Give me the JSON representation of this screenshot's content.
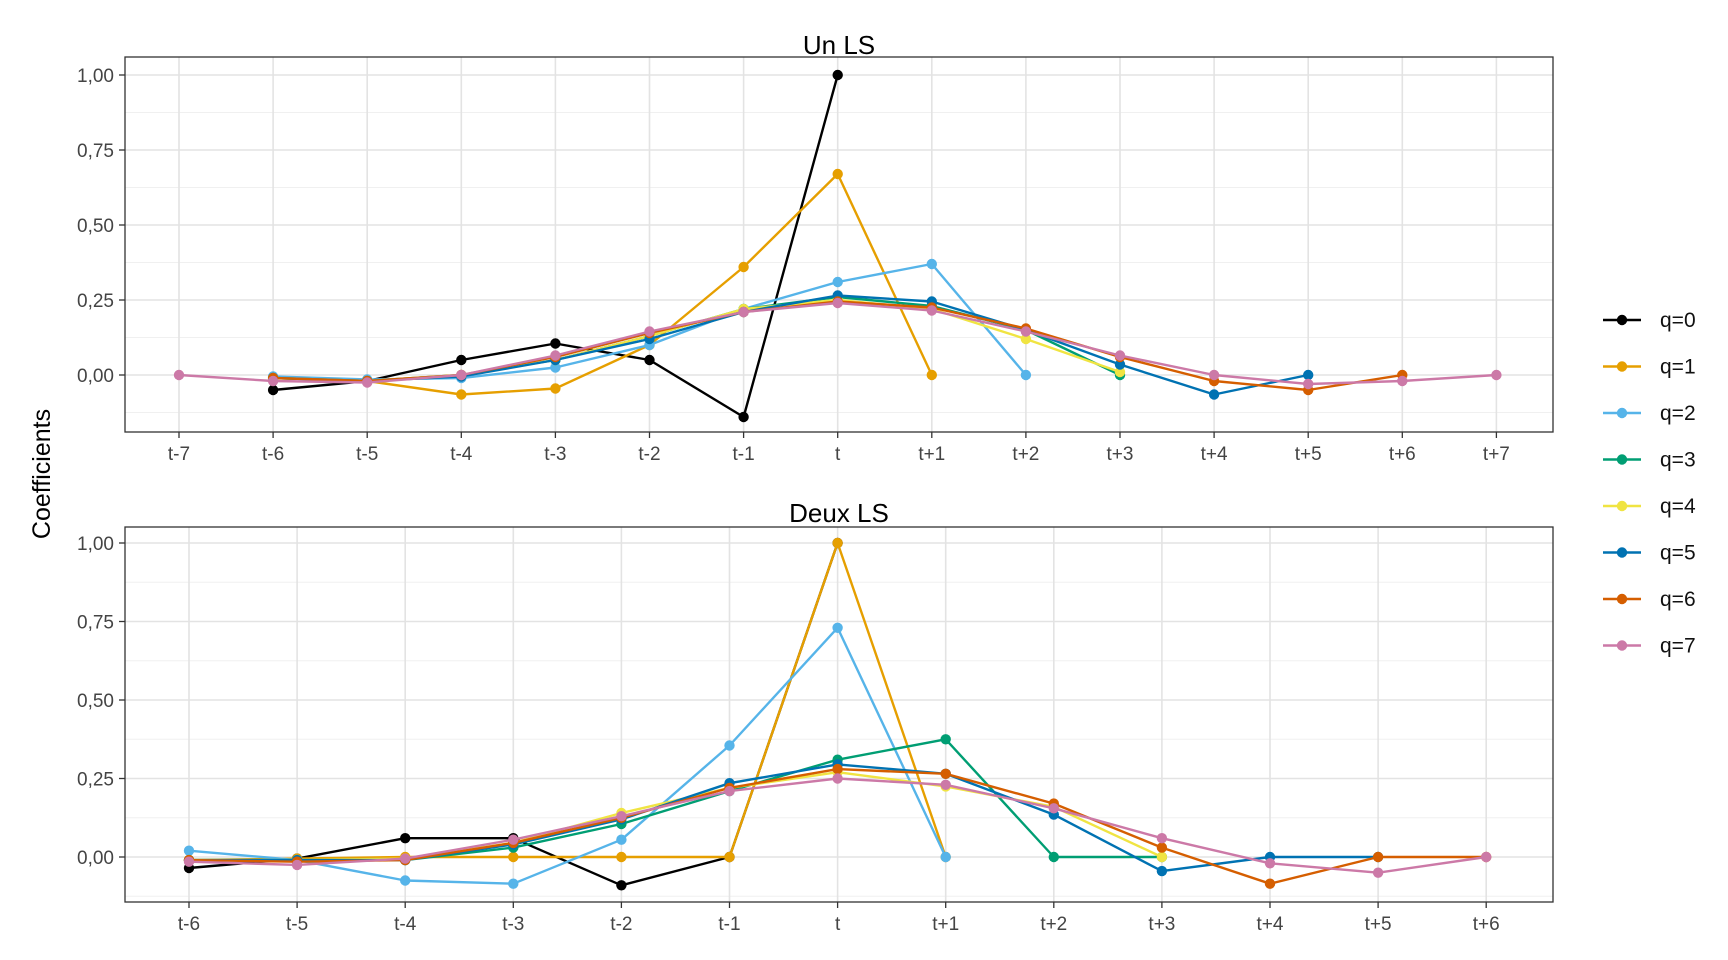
{
  "ylabel": "Coefficients",
  "legend": {
    "position": "right",
    "entries": [
      {
        "label": "q=0",
        "color": "#000000"
      },
      {
        "label": "q=1",
        "color": "#E69F00"
      },
      {
        "label": "q=2",
        "color": "#56B4E9"
      },
      {
        "label": "q=3",
        "color": "#009E73"
      },
      {
        "label": "q=4",
        "color": "#F0E442"
      },
      {
        "label": "q=5",
        "color": "#0072B2"
      },
      {
        "label": "q=6",
        "color": "#D55E00"
      },
      {
        "label": "q=7",
        "color": "#CC79A7"
      }
    ]
  },
  "chart_data": [
    {
      "type": "line",
      "title": "Un LS",
      "ylim": [
        -0.19,
        1.06
      ],
      "y_ticks": [
        0,
        0.25,
        0.5,
        0.75,
        1
      ],
      "y_tick_labels": [
        "0,00",
        "0,25",
        "0,50",
        "0,75",
        "1,00"
      ],
      "grid": true,
      "categories": [
        "t-7",
        "t-6",
        "t-5",
        "t-4",
        "t-3",
        "t-2",
        "t-1",
        "t",
        "t+1",
        "t+2",
        "t+3",
        "t+4",
        "t+5",
        "t+6",
        "t+7"
      ],
      "series": [
        {
          "name": "q=0",
          "values": [
            null,
            -0.05,
            -0.02,
            0.05,
            0.105,
            0.05,
            -0.14,
            1.0,
            null,
            null,
            null,
            null,
            null,
            null,
            null
          ]
        },
        {
          "name": "q=1",
          "values": [
            null,
            null,
            -0.02,
            -0.065,
            -0.045,
            0.1,
            0.36,
            0.67,
            0.0,
            null,
            null,
            null,
            null,
            null,
            null
          ]
        },
        {
          "name": "q=2",
          "values": [
            null,
            -0.005,
            -0.015,
            -0.01,
            0.025,
            0.1,
            0.22,
            0.31,
            0.37,
            0.0,
            null,
            null,
            null,
            null,
            null
          ]
        },
        {
          "name": "q=3",
          "values": [
            null,
            -0.01,
            -0.02,
            0.0,
            0.05,
            0.13,
            0.22,
            0.26,
            0.23,
            0.15,
            0.0,
            null,
            null,
            null,
            null
          ]
        },
        {
          "name": "q=4",
          "values": [
            null,
            -0.01,
            -0.02,
            0.0,
            0.05,
            0.13,
            0.22,
            0.25,
            0.22,
            0.12,
            0.01,
            null,
            null,
            null,
            null
          ]
        },
        {
          "name": "q=5",
          "values": [
            null,
            -0.01,
            -0.02,
            -0.005,
            0.05,
            0.12,
            0.21,
            0.265,
            0.245,
            0.15,
            0.035,
            -0.065,
            0.0,
            null,
            null
          ]
        },
        {
          "name": "q=6",
          "values": [
            null,
            -0.01,
            -0.02,
            0.0,
            0.06,
            0.14,
            0.21,
            0.245,
            0.225,
            0.155,
            0.06,
            -0.02,
            -0.05,
            0.0,
            null
          ]
        },
        {
          "name": "q=7",
          "values": [
            0.0,
            -0.02,
            -0.025,
            0.0,
            0.065,
            0.145,
            0.21,
            0.24,
            0.215,
            0.145,
            0.065,
            0.0,
            -0.03,
            -0.02,
            0.0
          ]
        }
      ]
    },
    {
      "type": "line",
      "title": "Deux LS",
      "ylim": [
        -0.14,
        1.06
      ],
      "y_ticks": [
        0,
        0.25,
        0.5,
        0.75,
        1
      ],
      "y_tick_labels": [
        "0,00",
        "0,25",
        "0,50",
        "0,75",
        "1,00"
      ],
      "grid": true,
      "categories": [
        "t-6",
        "t-5",
        "t-4",
        "t-3",
        "t-2",
        "t-1",
        "t",
        "t+1",
        "t+2",
        "t+3",
        "t+4",
        "t+5",
        "t+6"
      ],
      "series": [
        {
          "name": "q=0",
          "values": [
            -0.035,
            -0.005,
            0.06,
            0.06,
            -0.09,
            0.0,
            1.0,
            null,
            null,
            null,
            null,
            null,
            null
          ]
        },
        {
          "name": "q=1",
          "values": [
            -0.01,
            -0.005,
            0.0,
            0.0,
            0.0,
            0.0,
            1.0,
            0.0,
            null,
            null,
            null,
            null,
            null
          ]
        },
        {
          "name": "q=2",
          "values": [
            0.02,
            -0.01,
            -0.075,
            -0.085,
            0.055,
            0.355,
            0.73,
            0.0,
            null,
            null,
            null,
            null,
            null
          ]
        },
        {
          "name": "q=3",
          "values": [
            -0.01,
            -0.01,
            -0.01,
            0.03,
            0.105,
            0.21,
            0.31,
            0.375,
            0.0,
            0.0,
            null,
            null,
            null
          ]
        },
        {
          "name": "q=4",
          "values": [
            -0.01,
            -0.01,
            -0.005,
            0.045,
            0.14,
            0.22,
            0.27,
            0.225,
            0.16,
            0.0,
            null,
            null,
            null
          ]
        },
        {
          "name": "q=5",
          "values": [
            -0.01,
            -0.01,
            -0.01,
            0.04,
            0.12,
            0.235,
            0.295,
            0.265,
            0.135,
            -0.045,
            0.0,
            0.0,
            null
          ]
        },
        {
          "name": "q=6",
          "values": [
            -0.01,
            -0.015,
            -0.01,
            0.045,
            0.125,
            0.22,
            0.28,
            0.265,
            0.17,
            0.03,
            -0.085,
            0.0,
            0.0
          ]
        },
        {
          "name": "q=7",
          "values": [
            -0.015,
            -0.025,
            -0.005,
            0.055,
            0.13,
            0.21,
            0.25,
            0.23,
            0.155,
            0.06,
            -0.02,
            -0.05,
            0.0
          ]
        }
      ]
    }
  ]
}
